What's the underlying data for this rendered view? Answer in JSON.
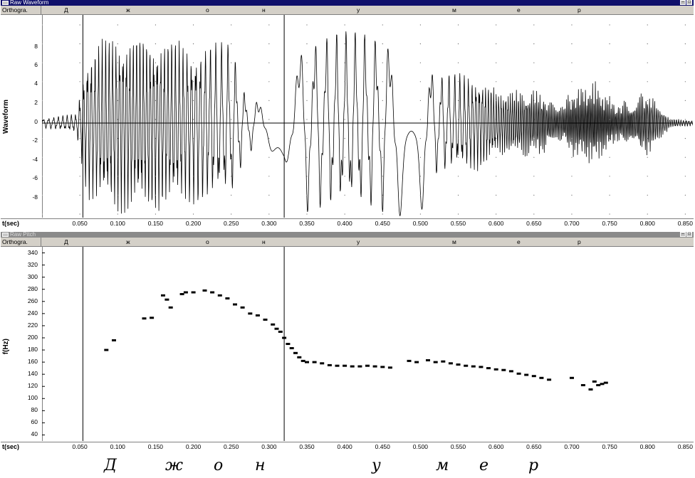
{
  "colors": {
    "titlebar_active": "#10106b",
    "titlebar_inactive": "#8a8a8a",
    "chrome": "#d4d0c8",
    "trace": "#000000"
  },
  "waveform_window": {
    "title": "Raw Waveform",
    "ortho_label": "Orthogra.",
    "ortho_segments": [
      "Д",
      "ж",
      "о",
      "н",
      "у",
      "м",
      "е",
      "р"
    ],
    "ylabel": "Waveform",
    "yticks": [
      "8",
      "6",
      "4",
      "2",
      "0",
      "-2",
      "-4",
      "-6",
      "-8"
    ],
    "xaxis_label": "t(sec)",
    "xticks": [
      "0.050",
      "0.100",
      "0.150",
      "0.200",
      "0.250",
      "0.300",
      "0.350",
      "0.400",
      "0.450",
      "0.500",
      "0.550",
      "0.600",
      "0.650",
      "0.700",
      "0.750",
      "0.800",
      "0.850"
    ],
    "window_buttons": [
      "minimize",
      "maximize"
    ]
  },
  "pitch_window": {
    "title": "Raw Pitch",
    "ortho_label": "Orthogra.",
    "ortho_segments": [
      "Д",
      "ж",
      "о",
      "н",
      "у",
      "м",
      "е",
      "р"
    ],
    "ylabel": "f(Hz)",
    "yticks": [
      "340",
      "320",
      "300",
      "280",
      "260",
      "240",
      "220",
      "200",
      "180",
      "160",
      "140",
      "120",
      "100",
      "80",
      "60",
      "40"
    ],
    "xaxis_label": "t(sec)",
    "xticks": [
      "0.050",
      "0.100",
      "0.150",
      "0.200",
      "0.250",
      "0.300",
      "0.350",
      "0.400",
      "0.450",
      "0.500",
      "0.550",
      "0.600",
      "0.650",
      "0.700",
      "0.750",
      "0.800",
      "0.850"
    ],
    "window_buttons": [
      "minimize",
      "maximize"
    ]
  },
  "caption_letters": [
    "Д",
    "ж",
    "о",
    "н",
    "у",
    "м",
    "е",
    "р"
  ],
  "chart_data": {
    "type": "scatter",
    "title": "",
    "xlabel": "t(sec)",
    "ylabel": "f(Hz)",
    "xlim": [
      0.0,
      0.86
    ],
    "ylim": [
      30,
      350
    ],
    "boundaries_sec": [
      0.054,
      0.32
    ],
    "x": [
      0.085,
      0.095,
      0.135,
      0.145,
      0.16,
      0.165,
      0.17,
      0.185,
      0.19,
      0.2,
      0.215,
      0.225,
      0.235,
      0.245,
      0.255,
      0.265,
      0.275,
      0.285,
      0.295,
      0.305,
      0.31,
      0.315,
      0.32,
      0.325,
      0.33,
      0.335,
      0.34,
      0.345,
      0.35,
      0.36,
      0.37,
      0.38,
      0.39,
      0.4,
      0.41,
      0.42,
      0.43,
      0.44,
      0.45,
      0.46,
      0.485,
      0.495,
      0.51,
      0.52,
      0.53,
      0.54,
      0.55,
      0.56,
      0.57,
      0.58,
      0.59,
      0.6,
      0.61,
      0.62,
      0.63,
      0.64,
      0.65,
      0.66,
      0.67,
      0.7,
      0.715,
      0.725,
      0.73,
      0.735,
      0.74,
      0.745
    ],
    "y": [
      180,
      196,
      232,
      233,
      270,
      263,
      250,
      272,
      275,
      275,
      278,
      275,
      270,
      265,
      255,
      250,
      240,
      237,
      230,
      222,
      215,
      210,
      200,
      190,
      183,
      175,
      168,
      162,
      160,
      160,
      158,
      155,
      154,
      154,
      153,
      153,
      154,
      153,
      152,
      151,
      162,
      160,
      163,
      160,
      161,
      158,
      156,
      154,
      153,
      152,
      150,
      148,
      147,
      145,
      141,
      139,
      137,
      134,
      131,
      134,
      122,
      115,
      128,
      122,
      124,
      126
    ]
  }
}
